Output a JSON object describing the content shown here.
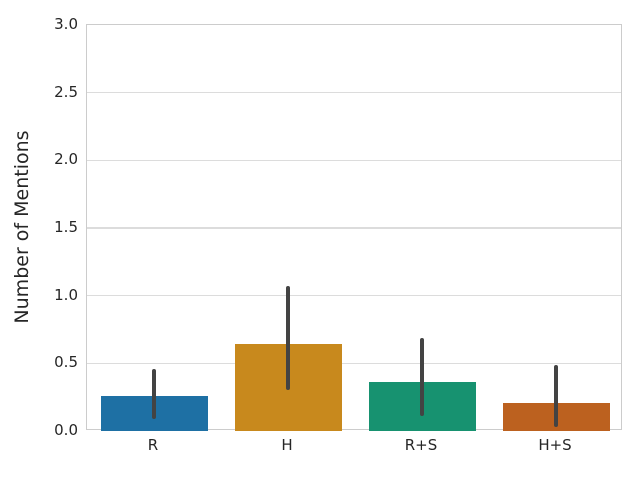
{
  "figure": {
    "background": "#ffffff",
    "plot_border_color": "#cccccc",
    "grid_color": "#dcdcdc",
    "errorbar_color": "#434343",
    "text_color": "#262626"
  },
  "chart_data": {
    "type": "bar",
    "title": "",
    "xlabel": "",
    "ylabel": "Number of Mentions",
    "categories": [
      "R",
      "H",
      "R+S",
      "H+S"
    ],
    "values": [
      0.26,
      0.64,
      0.36,
      0.21
    ],
    "error_low": [
      0.09,
      0.3,
      0.11,
      0.03
    ],
    "error_high": [
      0.46,
      1.07,
      0.69,
      0.49
    ],
    "bar_colors": [
      "#1e70a4",
      "#c8891d",
      "#179270",
      "#bc611f"
    ],
    "ylim": [
      0.0,
      3.0
    ],
    "yticks": [
      0.0,
      0.5,
      1.0,
      1.5,
      2.0,
      2.5,
      3.0
    ],
    "ytick_labels": [
      "0.0",
      "0.5",
      "1.0",
      "1.5",
      "2.0",
      "2.5",
      "3.0"
    ],
    "grid": true,
    "legend_position": "none"
  }
}
